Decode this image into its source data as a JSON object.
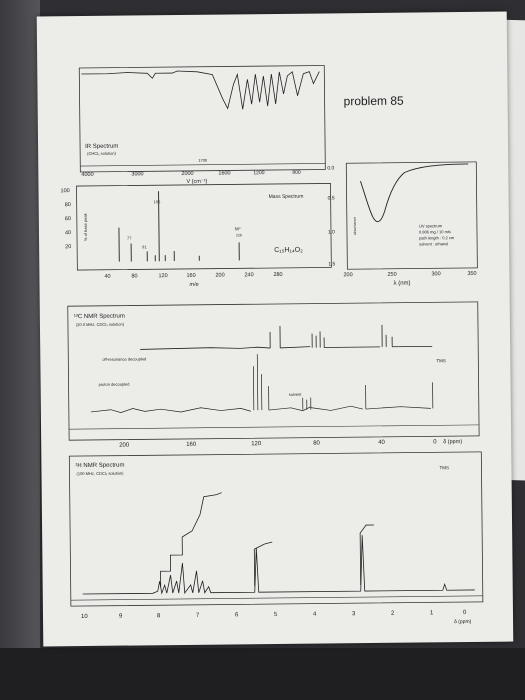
{
  "header": {
    "problem": "problem 85"
  },
  "ir": {
    "title": "IR Spectrum",
    "sub": "(CHCl₃ solution)",
    "mark1700": "1700",
    "ticks": [
      "4000",
      "3000",
      "2000",
      "1600",
      "1200",
      "800"
    ],
    "xlabel": "V (cm⁻¹)"
  },
  "mass": {
    "title": "Mass Spectrum",
    "yticks": [
      "100",
      "80",
      "60",
      "40",
      "20"
    ],
    "ylabel": "% of base peak",
    "peak105": "105",
    "peak77": "77",
    "peak91": "91",
    "mplus": "M⁺˙",
    "mplus_val": "226",
    "formula": "C₁₅H₁₄O₂",
    "xticks": [
      "40",
      "80",
      "120",
      "160",
      "200",
      "240",
      "280"
    ],
    "xlabel": "m/e"
  },
  "uv": {
    "yticks": [
      "0.0",
      "0.5",
      "1.0",
      "1.5"
    ],
    "ylabel": "absorbance",
    "info": [
      "UV spectrum",
      "0.806 mg / 10 mls",
      "path length : 0.2 cm",
      "solvent : ethanol"
    ],
    "xticks": [
      "200",
      "250",
      "300",
      "350"
    ],
    "xlabel": "λ (nm)"
  },
  "c13": {
    "title": "¹³C NMR Spectrum",
    "sub": "(20.0 MHz, CDCl₃ solution)",
    "off": "off-resonance decoupled",
    "proton": "proton decoupled",
    "solvent": "solvent",
    "tms": "TMS",
    "xticks": [
      "200",
      "160",
      "120",
      "80",
      "40",
      "0"
    ],
    "unit": "δ (ppm)"
  },
  "h1": {
    "title": "¹H NMR Spectrum",
    "sub": "(100 MHz, CDCl₃ solution)",
    "tms": "TMS",
    "xticks": [
      "10",
      "9",
      "8",
      "7",
      "6",
      "5",
      "4",
      "3",
      "2",
      "1",
      "0"
    ],
    "unit": "δ (ppm)"
  }
}
